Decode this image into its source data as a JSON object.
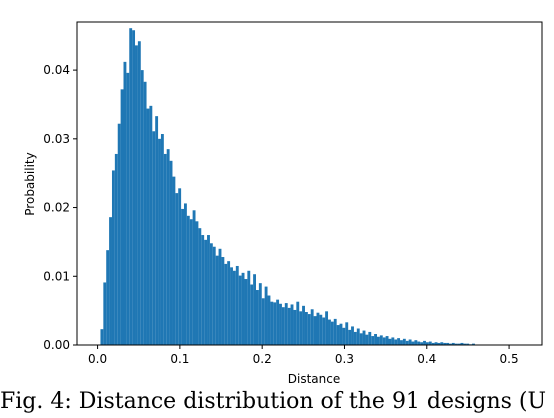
{
  "chart_data": {
    "type": "bar",
    "title": "",
    "xlabel": "Distance",
    "ylabel": "Probability",
    "xlim": [
      -0.025,
      0.54
    ],
    "ylim": [
      0,
      0.047
    ],
    "xticks": [
      0.0,
      0.1,
      0.2,
      0.3,
      0.4,
      0.5
    ],
    "xtick_labels": [
      "0.0",
      "0.1",
      "0.2",
      "0.3",
      "0.4",
      "0.5"
    ],
    "yticks": [
      0.0,
      0.01,
      0.02,
      0.03,
      0.04
    ],
    "ytick_labels": [
      "0.00",
      "0.01",
      "0.02",
      "0.03",
      "0.04"
    ],
    "bar_color": "#1f77b4",
    "grid": false,
    "legend": "none",
    "bin_start": 0.0035,
    "bin_width": 0.0035,
    "values": [
      0.0023,
      0.0091,
      0.0138,
      0.0186,
      0.0254,
      0.0278,
      0.0322,
      0.0372,
      0.0412,
      0.0396,
      0.0461,
      0.0458,
      0.0436,
      0.0442,
      0.04,
      0.0383,
      0.0344,
      0.0348,
      0.0311,
      0.0333,
      0.03,
      0.0307,
      0.0278,
      0.0285,
      0.0268,
      0.0245,
      0.0221,
      0.0228,
      0.0198,
      0.0206,
      0.0188,
      0.0183,
      0.0196,
      0.018,
      0.017,
      0.016,
      0.0153,
      0.016,
      0.0148,
      0.0143,
      0.013,
      0.014,
      0.0128,
      0.0118,
      0.0122,
      0.0113,
      0.0108,
      0.0115,
      0.0101,
      0.0105,
      0.0096,
      0.0108,
      0.0088,
      0.0103,
      0.008,
      0.009,
      0.0068,
      0.0085,
      0.0072,
      0.0063,
      0.0062,
      0.0066,
      0.006,
      0.0055,
      0.0061,
      0.0054,
      0.0059,
      0.0051,
      0.0063,
      0.0049,
      0.0057,
      0.0048,
      0.0045,
      0.0052,
      0.0042,
      0.0047,
      0.0044,
      0.004,
      0.0049,
      0.0037,
      0.0034,
      0.0038,
      0.0029,
      0.0031,
      0.0025,
      0.0033,
      0.0022,
      0.0027,
      0.0019,
      0.0024,
      0.0017,
      0.0021,
      0.0015,
      0.0019,
      0.0013,
      0.0016,
      0.0012,
      0.0014,
      0.0011,
      0.0013,
      0.0009,
      0.0011,
      0.0008,
      0.001,
      0.0007,
      0.0009,
      0.0006,
      0.0008,
      0.0005,
      0.0007,
      0.0005,
      0.0004,
      0.0006,
      0.0004,
      0.0005,
      0.0003,
      0.0004,
      0.0003,
      0.0004,
      0.0003,
      0.0003,
      0.0002,
      0.0003,
      0.0002,
      0.0002,
      0.0003,
      0.0002,
      0.0002,
      0.0001,
      0.0002
    ]
  },
  "caption": {
    "text": "Fig. 4: Distance distribution of the 91 designs (U"
  }
}
